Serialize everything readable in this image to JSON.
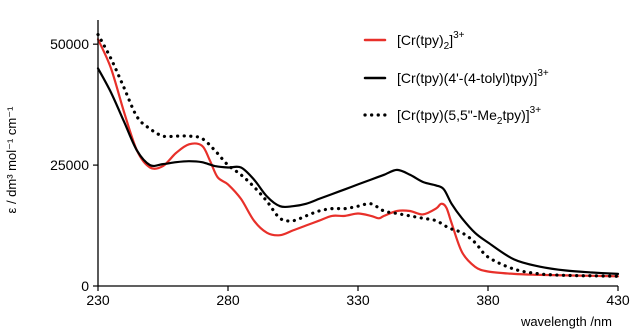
{
  "chart_data": {
    "type": "line",
    "xlabel": "wavelength /nm",
    "ylabel": "ε / dm³ mol⁻¹ cm⁻¹",
    "xlim": [
      230,
      430
    ],
    "ylim": [
      0,
      55000
    ],
    "xticks": [
      230,
      280,
      330,
      380,
      430
    ],
    "yticks": [
      0,
      25000,
      50000
    ],
    "xtick_labels": [
      "230",
      "280",
      "330",
      "380",
      "430"
    ],
    "ytick_labels": [
      "0",
      "25000",
      "50000"
    ],
    "legend_position": "top-right",
    "grid": false,
    "series": [
      {
        "name": "[Cr(tpy)2]3+",
        "legend_main": "[Cr(tpy)",
        "legend_sub": "2",
        "legend_tail": "]",
        "legend_sup": "3+",
        "color": "#e8302a",
        "style": "solid",
        "x": [
          230,
          235,
          240,
          245,
          250,
          255,
          260,
          265,
          270,
          273,
          276,
          280,
          285,
          290,
          295,
          300,
          305,
          310,
          315,
          320,
          325,
          330,
          335,
          338,
          340,
          345,
          350,
          355,
          360,
          362,
          364,
          366,
          370,
          375,
          380,
          390,
          400,
          410,
          420,
          430
        ],
        "y": [
          51000,
          45000,
          36000,
          28000,
          24500,
          24800,
          27500,
          29300,
          29000,
          26000,
          22500,
          21000,
          18000,
          13500,
          11000,
          10500,
          11500,
          12500,
          13500,
          14500,
          14500,
          15000,
          14500,
          14000,
          14500,
          15500,
          15500,
          14800,
          16000,
          17000,
          16200,
          13000,
          7000,
          4000,
          3000,
          2500,
          2300,
          2200,
          2100,
          2000
        ]
      },
      {
        "name": "[Cr(tpy)(4'-(4-tolyl)tpy)]3+",
        "legend_main": "[Cr(tpy)(4'-(4-tolyl)tpy)]",
        "legend_sub": "",
        "legend_tail": "",
        "legend_sup": "3+",
        "color": "#000000",
        "style": "solid",
        "x": [
          230,
          235,
          240,
          245,
          250,
          255,
          260,
          265,
          270,
          275,
          280,
          285,
          290,
          295,
          300,
          305,
          310,
          315,
          320,
          325,
          330,
          335,
          340,
          345,
          350,
          355,
          360,
          363,
          366,
          370,
          375,
          380,
          390,
          400,
          410,
          420,
          430
        ],
        "y": [
          45000,
          40000,
          34000,
          28000,
          25000,
          25200,
          25600,
          25800,
          25600,
          24800,
          24500,
          24500,
          22000,
          18500,
          16500,
          16500,
          17000,
          18000,
          19000,
          20000,
          21000,
          22000,
          23000,
          24000,
          23000,
          21500,
          20800,
          20000,
          17000,
          14000,
          11000,
          9000,
          5500,
          4000,
          3200,
          2800,
          2500
        ]
      },
      {
        "name": "[Cr(tpy)(5,5\"-Me2tpy)]3+",
        "legend_main": "[Cr(tpy)(5,5\"-Me",
        "legend_sub": "2",
        "legend_tail": "tpy)]",
        "legend_sup": "3+",
        "color": "#000000",
        "style": "dotted",
        "x": [
          230,
          235,
          240,
          245,
          250,
          255,
          260,
          265,
          270,
          275,
          280,
          285,
          290,
          295,
          300,
          305,
          310,
          315,
          320,
          325,
          330,
          335,
          340,
          345,
          350,
          355,
          360,
          365,
          370,
          375,
          380,
          390,
          400,
          410,
          420,
          430
        ],
        "y": [
          52000,
          47000,
          41000,
          35000,
          32500,
          31000,
          31000,
          31000,
          30500,
          28000,
          25000,
          23000,
          20500,
          17500,
          14000,
          13500,
          14500,
          15500,
          16000,
          16000,
          16500,
          17000,
          15500,
          15000,
          14500,
          14000,
          13500,
          12000,
          11000,
          9000,
          6000,
          3500,
          2500,
          2200,
          2100,
          2000
        ]
      }
    ]
  }
}
